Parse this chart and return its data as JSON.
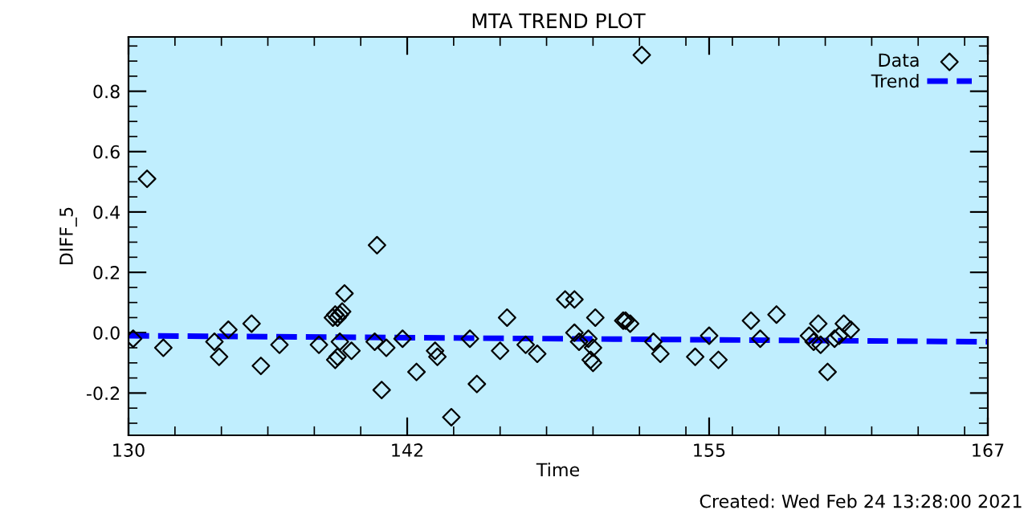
{
  "chart_data": {
    "type": "scatter",
    "title": "MTA TREND PLOT",
    "xlabel": "Time",
    "ylabel": "DIFF_5",
    "xlim": [
      130,
      167
    ],
    "xticks": [
      130,
      142,
      155,
      167
    ],
    "ylim": [
      -0.34,
      0.98
    ],
    "yticks": [
      {
        "value": -0.2,
        "label": "-0.2"
      },
      {
        "value": 0,
        "label": "0.0"
      },
      {
        "value": 0.2,
        "label": "0.2"
      },
      {
        "value": 0.4,
        "label": "0.4"
      },
      {
        "value": 0.6,
        "label": "0.6"
      },
      {
        "value": 0.8,
        "label": "0.8"
      }
    ],
    "grid": false,
    "legend": "top right",
    "annotations": [
      "Created: Wed Feb 24 13:28:00 2021"
    ],
    "series": [
      {
        "name": "Data",
        "marker": "diamond",
        "color": "#000000",
        "x": [
          130.2,
          130.8,
          131.5,
          133.7,
          133.9,
          134.3,
          135.3,
          135.7,
          136.5,
          138.2,
          138.8,
          138.9,
          139.0,
          139.1,
          139.3,
          139.2,
          139.1,
          139.0,
          138.9,
          139.6,
          140.7,
          140.9,
          140.6,
          141.1,
          141.8,
          142.4,
          143.2,
          143.3,
          143.9,
          144.7,
          145.0,
          146.0,
          146.3,
          147.1,
          147.6,
          148.8,
          149.2,
          149.2,
          149.4,
          149.8,
          149.9,
          150.0,
          150.1,
          150.0,
          151.3,
          151.4,
          151.6,
          152.1,
          152.6,
          152.9,
          154.4,
          155.0,
          155.4,
          156.8,
          157.2,
          157.9,
          159.3,
          159.5,
          159.7,
          159.8,
          160.1,
          160.4,
          160.6,
          160.8,
          161.1
        ],
        "values": [
          -0.02,
          0.51,
          -0.05,
          -0.03,
          -0.08,
          0.01,
          0.03,
          -0.11,
          -0.04,
          -0.04,
          0.05,
          0.06,
          0.05,
          0.06,
          0.13,
          0.07,
          -0.03,
          -0.08,
          -0.09,
          -0.06,
          0.29,
          -0.19,
          -0.03,
          -0.05,
          -0.02,
          -0.13,
          -0.06,
          -0.08,
          -0.28,
          -0.02,
          -0.17,
          -0.06,
          0.05,
          -0.04,
          -0.07,
          0.11,
          0.11,
          0,
          -0.03,
          -0.02,
          -0.09,
          -0.1,
          0.05,
          -0.05,
          0.04,
          0.04,
          0.03,
          0.92,
          -0.03,
          -0.07,
          -0.08,
          -0.01,
          -0.09,
          0.04,
          -0.02,
          0.06,
          -0.01,
          -0.03,
          0.03,
          -0.04,
          -0.13,
          -0.02,
          -0.01,
          0.03,
          0.01
        ]
      },
      {
        "name": "Trend",
        "type": "line",
        "line_style": "dashed",
        "color": "#0000ff",
        "x": [
          130,
          167
        ],
        "values": [
          -0.01,
          -0.03
        ]
      }
    ]
  }
}
